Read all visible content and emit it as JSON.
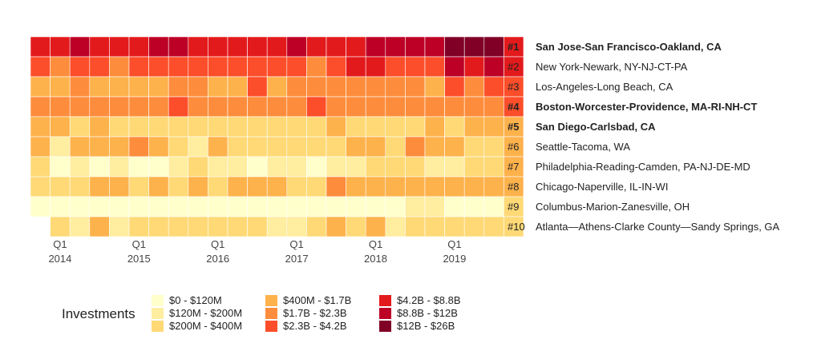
{
  "chart_data": {
    "type": "heatmap",
    "title": "",
    "xlabel": "",
    "ylabel": "",
    "x_ticks": [
      {
        "q": "Q1",
        "year": "2014"
      },
      {
        "q": "Q1",
        "year": "2015"
      },
      {
        "q": "Q1",
        "year": "2016"
      },
      {
        "q": "Q1",
        "year": "2017"
      },
      {
        "q": "Q1",
        "year": "2018"
      },
      {
        "q": "Q1",
        "year": "2019"
      }
    ],
    "columns": [
      "Q4 2013",
      "Q1 2014",
      "Q2 2014",
      "Q3 2014",
      "Q4 2014",
      "Q1 2015",
      "Q2 2015",
      "Q3 2015",
      "Q4 2015",
      "Q1 2016",
      "Q2 2016",
      "Q3 2016",
      "Q4 2016",
      "Q1 2017",
      "Q2 2017",
      "Q3 2017",
      "Q4 2017",
      "Q1 2018",
      "Q2 2018",
      "Q3 2018",
      "Q4 2018",
      "Q1 2019",
      "Q2 2019",
      "Q3 2019",
      "Q4 2019"
    ],
    "legend_title": "Investments",
    "bins": [
      {
        "label": "$0 - $120M",
        "color": "#ffffcc"
      },
      {
        "label": "$120M - $200M",
        "color": "#ffeda0"
      },
      {
        "label": "$200M - $400M",
        "color": "#fed976"
      },
      {
        "label": "$400M - $1.7B",
        "color": "#feb24c"
      },
      {
        "label": "$1.7B - $2.3B",
        "color": "#fd8d3c"
      },
      {
        "label": "$2.3B - $4.2B",
        "color": "#fc4e2a"
      },
      {
        "label": "$4.2B - $8.8B",
        "color": "#e31a1c"
      },
      {
        "label": "$8.8B - $12B",
        "color": "#bd0026"
      },
      {
        "label": "$12B - $26B",
        "color": "#800026"
      }
    ],
    "rows": [
      {
        "rank": "#1",
        "name": "San Jose-San Francisco-Oakland, CA",
        "bold": true,
        "values": [
          6,
          6,
          7,
          6,
          6,
          6,
          7,
          7,
          6,
          6,
          6,
          6,
          6,
          7,
          6,
          6,
          6,
          7,
          7,
          7,
          7,
          8,
          8,
          8,
          6
        ]
      },
      {
        "rank": "#2",
        "name": "New York-Newark, NY-NJ-CT-PA",
        "bold": false,
        "values": [
          5,
          4,
          5,
          5,
          4,
          5,
          5,
          5,
          5,
          5,
          5,
          5,
          5,
          5,
          4,
          5,
          6,
          6,
          5,
          5,
          5,
          7,
          6,
          7,
          6
        ]
      },
      {
        "rank": "#3",
        "name": "Los-Angeles-Long Beach, CA",
        "bold": false,
        "values": [
          3,
          3,
          4,
          3,
          3,
          3,
          3,
          4,
          4,
          3,
          3,
          5,
          3,
          4,
          4,
          4,
          4,
          4,
          4,
          4,
          3,
          5,
          4,
          5,
          5
        ]
      },
      {
        "rank": "#4",
        "name": "Boston-Worcester-Providence, MA-RI-NH-CT",
        "bold": true,
        "values": [
          4,
          4,
          4,
          4,
          4,
          4,
          4,
          5,
          4,
          4,
          4,
          4,
          4,
          4,
          5,
          4,
          4,
          4,
          4,
          4,
          4,
          4,
          4,
          4,
          5
        ]
      },
      {
        "rank": "#5",
        "name": "San Diego-Carlsbad, CA",
        "bold": true,
        "values": [
          3,
          3,
          2,
          3,
          2,
          2,
          2,
          2,
          2,
          2,
          2,
          2,
          2,
          2,
          2,
          3,
          2,
          2,
          2,
          2,
          3,
          2,
          3,
          3,
          3
        ]
      },
      {
        "rank": "#6",
        "name": "Seattle-Tacoma, WA",
        "bold": false,
        "values": [
          3,
          1,
          3,
          3,
          3,
          4,
          3,
          2,
          1,
          3,
          2,
          2,
          2,
          2,
          2,
          2,
          3,
          3,
          2,
          4,
          3,
          3,
          2,
          2,
          3
        ]
      },
      {
        "rank": "#7",
        "name": "Philadelphia-Reading-Camden, PA-NJ-DE-MD",
        "bold": false,
        "values": [
          2,
          0,
          1,
          0,
          1,
          0,
          0,
          1,
          2,
          1,
          1,
          0,
          1,
          1,
          0,
          1,
          1,
          2,
          2,
          2,
          1,
          1,
          2,
          2,
          3
        ]
      },
      {
        "rank": "#8",
        "name": "Chicago-Naperville, IL-IN-WI",
        "bold": false,
        "values": [
          2,
          2,
          2,
          3,
          3,
          2,
          3,
          2,
          3,
          2,
          3,
          3,
          3,
          2,
          2,
          4,
          3,
          3,
          3,
          3,
          3,
          3,
          3,
          3,
          3
        ]
      },
      {
        "rank": "#9",
        "name": "Columbus-Marion-Zanesville, OH",
        "bold": false,
        "values": [
          0,
          0,
          0,
          0,
          0,
          0,
          0,
          0,
          0,
          0,
          0,
          0,
          0,
          0,
          0,
          0,
          0,
          0,
          0,
          1,
          1,
          0,
          0,
          0,
          2
        ]
      },
      {
        "rank": "#10",
        "name": "Atlanta—Athens-Clarke County—Sandy Springs, GA",
        "bold": false,
        "values": [
          null,
          2,
          1,
          3,
          1,
          2,
          2,
          2,
          2,
          2,
          2,
          2,
          1,
          1,
          2,
          3,
          2,
          3,
          1,
          2,
          2,
          2,
          2,
          2,
          2
        ]
      }
    ]
  }
}
